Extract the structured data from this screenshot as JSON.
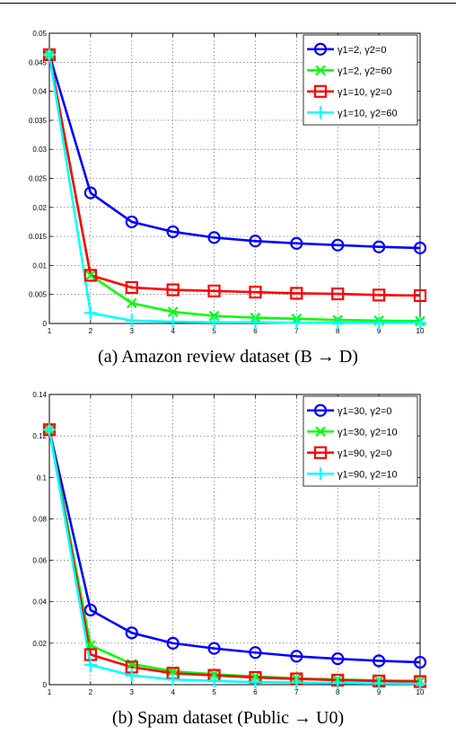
{
  "chart_data": [
    {
      "type": "line",
      "title": "",
      "xlabel": "",
      "ylabel": "",
      "xlim": [
        1,
        10
      ],
      "ylim": [
        0,
        0.05
      ],
      "x": [
        1,
        2,
        3,
        4,
        5,
        6,
        7,
        8,
        9,
        10
      ],
      "xticks": [
        "1",
        "2",
        "3",
        "4",
        "5",
        "6",
        "7",
        "8",
        "9",
        "10"
      ],
      "yticks": [
        "0",
        "0.005",
        "0.01",
        "0.015",
        "0.02",
        "0.025",
        "0.03",
        "0.035",
        "0.04",
        "0.045",
        "0.05"
      ],
      "grid": true,
      "legend_position": "top-right",
      "series": [
        {
          "name": "γ1=2, γ2=0",
          "color": "#0000ff",
          "marker": "circle",
          "values": [
            0.0463,
            0.0225,
            0.0175,
            0.0158,
            0.0148,
            0.0142,
            0.0138,
            0.0135,
            0.0132,
            0.013
          ]
        },
        {
          "name": "γ1=2, γ2=60",
          "color": "#00ff00",
          "marker": "x",
          "values": [
            0.0463,
            0.0083,
            0.0035,
            0.002,
            0.0013,
            0.001,
            0.0008,
            0.0006,
            0.0005,
            0.0004
          ]
        },
        {
          "name": "γ1=10, γ2=0",
          "color": "#ff0000",
          "marker": "square",
          "values": [
            0.0463,
            0.0083,
            0.0062,
            0.0058,
            0.0056,
            0.0054,
            0.0052,
            0.0051,
            0.0049,
            0.0048
          ]
        },
        {
          "name": "γ1=10, γ2=60",
          "color": "#00ffff",
          "marker": "plus",
          "values": [
            0.0463,
            0.0018,
            0.0005,
            0.0003,
            0.0002,
            0.0002,
            0.0001,
            0.0001,
            0.0001,
            0.0001
          ]
        }
      ],
      "caption": "(a)  Amazon review dataset (B → D)"
    },
    {
      "type": "line",
      "title": "",
      "xlabel": "",
      "ylabel": "",
      "xlim": [
        1,
        10
      ],
      "ylim": [
        0,
        0.14
      ],
      "x": [
        1,
        2,
        3,
        4,
        5,
        6,
        7,
        8,
        9,
        10
      ],
      "xticks": [
        "1",
        "2",
        "3",
        "4",
        "5",
        "6",
        "7",
        "8",
        "9",
        "10"
      ],
      "yticks": [
        "0",
        "0.02",
        "0.04",
        "0.06",
        "0.08",
        "0.1",
        "0.12",
        "0.14"
      ],
      "grid": true,
      "legend_position": "top-right",
      "series": [
        {
          "name": "γ1=30, γ2=0",
          "color": "#0000ff",
          "marker": "circle",
          "values": [
            0.123,
            0.036,
            0.025,
            0.02,
            0.0175,
            0.0155,
            0.0137,
            0.0125,
            0.0115,
            0.0108
          ]
        },
        {
          "name": "γ1=30, γ2=10",
          "color": "#00ff00",
          "marker": "x",
          "values": [
            0.123,
            0.019,
            0.01,
            0.0065,
            0.005,
            0.004,
            0.003,
            0.0025,
            0.002,
            0.0018
          ]
        },
        {
          "name": "γ1=90, γ2=0",
          "color": "#ff0000",
          "marker": "square",
          "values": [
            0.123,
            0.0145,
            0.0085,
            0.0055,
            0.0045,
            0.0035,
            0.0028,
            0.0022,
            0.0018,
            0.0015
          ]
        },
        {
          "name": "γ1=90, γ2=10",
          "color": "#00ffff",
          "marker": "plus",
          "values": [
            0.123,
            0.0095,
            0.0045,
            0.0025,
            0.0018,
            0.0012,
            0.001,
            0.0008,
            0.0006,
            0.0005
          ]
        }
      ],
      "caption": "(b)  Spam dataset (Public → U0)"
    }
  ]
}
